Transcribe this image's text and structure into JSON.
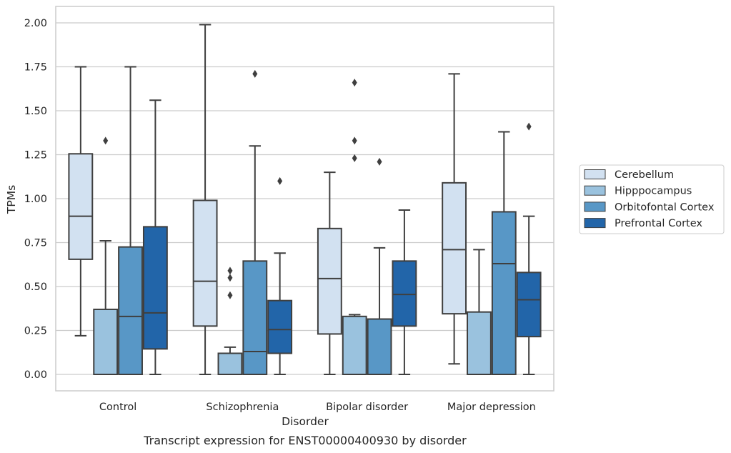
{
  "chart_data": {
    "type": "box",
    "title": "",
    "caption": "Transcript expression for ENST00000400930 by disorder",
    "xlabel": "Disorder",
    "ylabel": "TPMs",
    "ylim": [
      -0.1,
      2.08
    ],
    "yticks": [
      0.0,
      0.25,
      0.5,
      0.75,
      1.0,
      1.25,
      1.5,
      1.75,
      2.0
    ],
    "ytick_labels": [
      "0.00",
      "0.25",
      "0.50",
      "0.75",
      "1.00",
      "1.25",
      "1.50",
      "1.75",
      "2.00"
    ],
    "grid": "horizontal",
    "legend_position": "right",
    "categories": [
      "Control",
      "Schizophrenia",
      "Bipolar disorder",
      "Major depression"
    ],
    "series": [
      {
        "name": "Cerebellum",
        "color": "#d2e1f1",
        "boxes": [
          {
            "whislo": 0.22,
            "q1": 0.655,
            "med": 0.9,
            "q3": 1.255,
            "whishi": 1.75,
            "fliers": []
          },
          {
            "whislo": 0.0,
            "q1": 0.275,
            "med": 0.53,
            "q3": 0.99,
            "whishi": 1.99,
            "fliers": []
          },
          {
            "whislo": 0.0,
            "q1": 0.23,
            "med": 0.545,
            "q3": 0.83,
            "whishi": 1.15,
            "fliers": []
          },
          {
            "whislo": 0.06,
            "q1": 0.345,
            "med": 0.71,
            "q3": 1.09,
            "whishi": 1.71,
            "fliers": []
          }
        ]
      },
      {
        "name": "Hipppocampus",
        "color": "#9ac2de",
        "boxes": [
          {
            "whislo": 0.0,
            "q1": 0.0,
            "med": 0.0,
            "q3": 0.37,
            "whishi": 0.76,
            "fliers": [
              1.33
            ]
          },
          {
            "whislo": 0.0,
            "q1": 0.0,
            "med": 0.0,
            "q3": 0.12,
            "whishi": 0.155,
            "fliers": [
              0.45,
              0.55,
              0.59
            ]
          },
          {
            "whislo": 0.0,
            "q1": 0.0,
            "med": 0.0,
            "q3": 0.33,
            "whishi": 0.34,
            "fliers": [
              1.23,
              1.33,
              1.66
            ]
          },
          {
            "whislo": 0.0,
            "q1": 0.0,
            "med": 0.0,
            "q3": 0.355,
            "whishi": 0.71,
            "fliers": []
          }
        ]
      },
      {
        "name": "Orbitofontal Cortex",
        "color": "#5897c6",
        "boxes": [
          {
            "whislo": 0.0,
            "q1": 0.0,
            "med": 0.33,
            "q3": 0.725,
            "whishi": 1.75,
            "fliers": []
          },
          {
            "whislo": 0.0,
            "q1": 0.0,
            "med": 0.13,
            "q3": 0.645,
            "whishi": 1.3,
            "fliers": [
              1.71
            ]
          },
          {
            "whislo": 0.0,
            "q1": 0.0,
            "med": 0.0,
            "q3": 0.315,
            "whishi": 0.72,
            "fliers": [
              1.21
            ]
          },
          {
            "whislo": 0.0,
            "q1": 0.0,
            "med": 0.63,
            "q3": 0.925,
            "whishi": 1.38,
            "fliers": []
          }
        ]
      },
      {
        "name": "Prefrontal Cortex",
        "color": "#2265a9",
        "boxes": [
          {
            "whislo": 0.0,
            "q1": 0.145,
            "med": 0.35,
            "q3": 0.84,
            "whishi": 1.56,
            "fliers": []
          },
          {
            "whislo": 0.0,
            "q1": 0.12,
            "med": 0.255,
            "q3": 0.42,
            "whishi": 0.69,
            "fliers": [
              1.1
            ]
          },
          {
            "whislo": 0.0,
            "q1": 0.275,
            "med": 0.455,
            "q3": 0.645,
            "whishi": 0.935,
            "fliers": []
          },
          {
            "whislo": 0.0,
            "q1": 0.215,
            "med": 0.425,
            "q3": 0.58,
            "whishi": 0.9,
            "fliers": [
              1.41
            ]
          }
        ]
      }
    ]
  }
}
